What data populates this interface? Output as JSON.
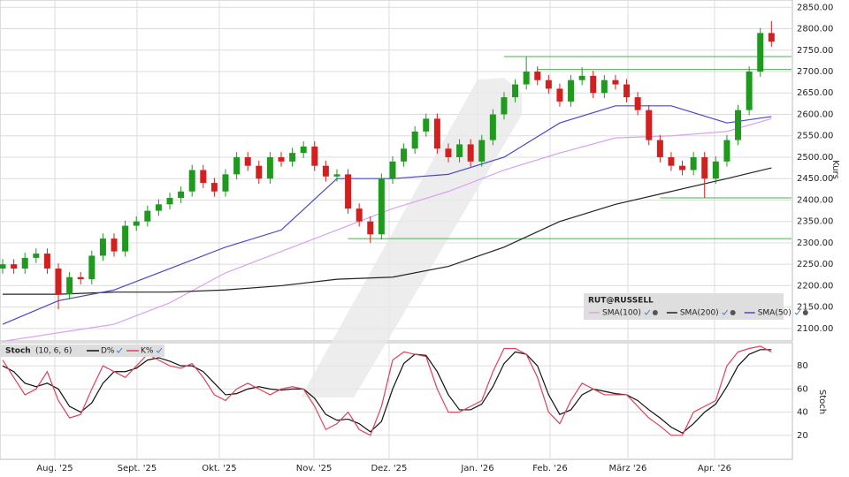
{
  "chart_data": [
    {
      "type": "candlestick",
      "name": "RUT@RUSSELL",
      "ylabel": "Kurs",
      "up_color": "#1f9a1f",
      "down_color": "#d41f1f",
      "open": [
        2240,
        2250,
        2240,
        2265,
        2275,
        2240,
        2180,
        2220,
        2215,
        2270,
        2310,
        2280,
        2340,
        2350,
        2375,
        2390,
        2405,
        2420,
        2470,
        2440,
        2420,
        2460,
        2500,
        2480,
        2450,
        2500,
        2490,
        2510,
        2525,
        2480,
        2455,
        2460,
        2380,
        2350,
        2320,
        2450,
        2490,
        2520,
        2560,
        2590,
        2520,
        2500,
        2530,
        2490,
        2540,
        2600,
        2640,
        2670,
        2700,
        2680,
        2660,
        2630,
        2680,
        2690,
        2650,
        2680,
        2670,
        2640,
        2610,
        2540,
        2500,
        2480,
        2470,
        2500,
        2450,
        2490,
        2540,
        2610,
        2700,
        2790
      ],
      "high": [
        2262,
        2262,
        2277,
        2287,
        2287,
        2252,
        2232,
        2232,
        2282,
        2322,
        2322,
        2352,
        2362,
        2387,
        2402,
        2417,
        2432,
        2482,
        2482,
        2452,
        2472,
        2512,
        2512,
        2492,
        2512,
        2512,
        2522,
        2537,
        2537,
        2492,
        2472,
        2472,
        2392,
        2362,
        2462,
        2502,
        2532,
        2572,
        2602,
        2602,
        2532,
        2542,
        2542,
        2552,
        2612,
        2652,
        2682,
        2735,
        2712,
        2692,
        2672,
        2692,
        2710,
        2702,
        2692,
        2692,
        2682,
        2652,
        2622,
        2552,
        2512,
        2492,
        2512,
        2512,
        2502,
        2552,
        2622,
        2712,
        2802,
        2818
      ],
      "low": [
        2228,
        2228,
        2228,
        2253,
        2228,
        2145,
        2168,
        2203,
        2203,
        2258,
        2268,
        2268,
        2328,
        2338,
        2363,
        2378,
        2393,
        2408,
        2428,
        2408,
        2408,
        2448,
        2468,
        2438,
        2438,
        2478,
        2478,
        2498,
        2468,
        2443,
        2443,
        2368,
        2338,
        2300,
        2308,
        2438,
        2478,
        2508,
        2548,
        2508,
        2488,
        2488,
        2478,
        2478,
        2528,
        2588,
        2628,
        2658,
        2668,
        2648,
        2618,
        2618,
        2668,
        2638,
        2638,
        2658,
        2628,
        2598,
        2528,
        2488,
        2468,
        2458,
        2458,
        2405,
        2438,
        2478,
        2528,
        2598,
        2688,
        2758
      ],
      "close": [
        2250,
        2240,
        2265,
        2275,
        2240,
        2180,
        2220,
        2215,
        2270,
        2310,
        2280,
        2340,
        2350,
        2375,
        2390,
        2405,
        2420,
        2470,
        2440,
        2420,
        2460,
        2500,
        2480,
        2450,
        2500,
        2490,
        2510,
        2525,
        2480,
        2455,
        2460,
        2380,
        2350,
        2320,
        2450,
        2490,
        2520,
        2560,
        2590,
        2520,
        2500,
        2530,
        2490,
        2540,
        2600,
        2640,
        2670,
        2700,
        2680,
        2660,
        2630,
        2680,
        2690,
        2650,
        2680,
        2670,
        2640,
        2610,
        2540,
        2500,
        2480,
        2470,
        2500,
        2450,
        2490,
        2540,
        2610,
        2700,
        2790,
        2770
      ],
      "series": [
        {
          "name": "SMA(100)",
          "color": "#d8a2ef",
          "x": [
            0,
            5,
            10,
            15,
            20,
            25,
            30,
            35,
            40,
            45,
            50,
            55,
            60,
            65,
            69
          ],
          "values": [
            2070,
            2090,
            2110,
            2160,
            2230,
            2280,
            2330,
            2380,
            2420,
            2470,
            2510,
            2545,
            2550,
            2560,
            2590
          ]
        },
        {
          "name": "SMA(200)",
          "color": "#222222",
          "x": [
            0,
            5,
            10,
            15,
            20,
            25,
            30,
            35,
            40,
            45,
            50,
            55,
            60,
            65,
            69
          ],
          "values": [
            2180,
            2180,
            2185,
            2185,
            2190,
            2200,
            2215,
            2220,
            2245,
            2290,
            2350,
            2390,
            2420,
            2450,
            2475
          ]
        },
        {
          "name": "SMA(50)",
          "color": "#4848c8",
          "x": [
            0,
            5,
            10,
            15,
            20,
            25,
            30,
            35,
            40,
            45,
            50,
            55,
            60,
            65,
            69
          ],
          "values": [
            2110,
            2165,
            2190,
            2240,
            2290,
            2330,
            2450,
            2450,
            2460,
            2500,
            2580,
            2620,
            2620,
            2580,
            2595
          ]
        }
      ],
      "hlines": [
        {
          "value": 2735,
          "start": 45
        },
        {
          "value": 2705,
          "start": 48
        },
        {
          "value": 2405,
          "start": 59
        },
        {
          "value": 2310,
          "start": 31
        }
      ],
      "hline_color": "#4caf50",
      "xlim": [
        -0.24,
        70.8
      ],
      "ylim": [
        2073,
        2865
      ],
      "yticks": [
        {
          "value": 2100,
          "label": "2100.00"
        },
        {
          "value": 2150,
          "label": "2150.00"
        },
        {
          "value": 2200,
          "label": "2200.00"
        },
        {
          "value": 2250,
          "label": "2250.00"
        },
        {
          "value": 2300,
          "label": "2300.00"
        },
        {
          "value": 2350,
          "label": "2350.00"
        },
        {
          "value": 2400,
          "label": "2400.00"
        },
        {
          "value": 2450,
          "label": "2450.00"
        },
        {
          "value": 2500,
          "label": "2500.00"
        },
        {
          "value": 2550,
          "label": "2550.00"
        },
        {
          "value": 2600,
          "label": "2600.00"
        },
        {
          "value": 2650,
          "label": "2650.00"
        },
        {
          "value": 2700,
          "label": "2700.00"
        },
        {
          "value": 2750,
          "label": "2750.00"
        },
        {
          "value": 2800,
          "label": "2800.00"
        },
        {
          "value": 2850,
          "label": "2850.00"
        }
      ],
      "grid": true,
      "legend": "bottom-right"
    },
    {
      "type": "line",
      "title": "Stoch",
      "params": "(10, 6, 6)",
      "ylabel": "Stoch",
      "series": [
        {
          "name": "D%",
          "color": "#111111",
          "values": [
            80,
            75,
            65,
            62,
            65,
            60,
            45,
            40,
            48,
            65,
            75,
            75,
            78,
            85,
            87,
            84,
            80,
            80,
            75,
            65,
            55,
            56,
            60,
            62,
            60,
            59,
            60,
            60,
            52,
            38,
            33,
            34,
            30,
            23,
            32,
            60,
            82,
            90,
            89,
            75,
            55,
            42,
            42,
            47,
            62,
            82,
            92,
            90,
            80,
            55,
            38,
            42,
            55,
            60,
            58,
            56,
            55,
            50,
            42,
            35,
            27,
            22,
            30,
            40,
            47,
            62,
            80,
            90,
            94,
            94
          ]
        },
        {
          "name": "K%",
          "color": "#e0405a",
          "values": [
            85,
            70,
            55,
            60,
            75,
            50,
            35,
            38,
            60,
            80,
            75,
            70,
            80,
            90,
            85,
            80,
            78,
            82,
            70,
            55,
            50,
            60,
            65,
            60,
            55,
            60,
            62,
            60,
            45,
            25,
            30,
            40,
            25,
            20,
            45,
            85,
            92,
            90,
            88,
            60,
            40,
            40,
            45,
            50,
            75,
            95,
            95,
            90,
            70,
            40,
            30,
            50,
            65,
            60,
            55,
            55,
            55,
            45,
            35,
            28,
            20,
            20,
            40,
            45,
            50,
            80,
            92,
            95,
            97,
            92
          ]
        }
      ],
      "xlim": [
        -0.24,
        70.8
      ],
      "ylim": [
        0,
        99.2
      ],
      "xticks": [
        {
          "value": 4.68,
          "label": "Aug. '25"
        },
        {
          "value": 12.06,
          "label": "Sept. '25"
        },
        {
          "value": 19.44,
          "label": "Okt. '25"
        },
        {
          "value": 27.94,
          "label": "Nov. '25"
        },
        {
          "value": 34.68,
          "label": "Dez. '25"
        },
        {
          "value": 42.62,
          "label": "Jan. '26"
        },
        {
          "value": 49.13,
          "label": "Feb. '26"
        },
        {
          "value": 56.11,
          "label": "März '26"
        },
        {
          "value": 63.89,
          "label": "Apr. '26"
        }
      ],
      "yticks": [
        20,
        40,
        60,
        80
      ],
      "grid": true,
      "legend": "top-left"
    }
  ]
}
